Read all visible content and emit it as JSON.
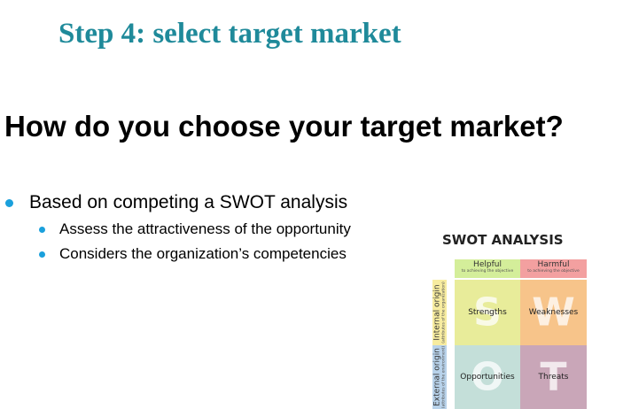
{
  "slide": {
    "step_title": "Step 4: select target market",
    "heading": "How do you choose your target market?",
    "bullets": [
      {
        "text": "Based on competing a SWOT analysis",
        "sub": [
          "Assess the attractiveness of the opportunity",
          "Considers the organization’s competencies"
        ]
      }
    ],
    "bullet_color": "#1aa0dc",
    "title_color": "#1f8a9a"
  },
  "swot": {
    "title": "SWOT ANALYSIS",
    "columns": [
      {
        "label": "Helpful",
        "sub": "to achieving the objective"
      },
      {
        "label": "Harmful",
        "sub": "to achieving the objective"
      }
    ],
    "rows": [
      {
        "label": "Internal origin",
        "sub": "(attributes of the organization)"
      },
      {
        "label": "External origin",
        "sub": "(attributes of the environment)"
      }
    ],
    "quadrants": [
      {
        "letter": "S",
        "label": "Strengths",
        "color": "#e8ec9a"
      },
      {
        "letter": "W",
        "label": "Weaknesses",
        "color": "#f7c48a"
      },
      {
        "letter": "O",
        "label": "Opportunities",
        "color": "#c4dfd9"
      },
      {
        "letter": "T",
        "label": "Threats",
        "color": "#c9a6b8"
      }
    ]
  }
}
